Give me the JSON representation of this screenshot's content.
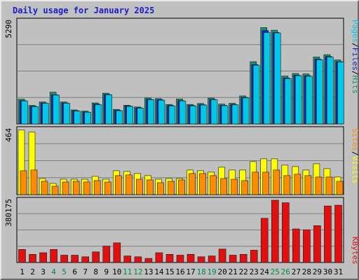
{
  "chart_data": {
    "type": "bar",
    "title": "Daily usage for January 2025",
    "days": [
      "1",
      "2",
      "3",
      "4",
      "5",
      "6",
      "7",
      "8",
      "9",
      "10",
      "11",
      "12",
      "13",
      "14",
      "15",
      "16",
      "17",
      "18",
      "19",
      "20",
      "21",
      "22",
      "23",
      "24",
      "25",
      "26",
      "27",
      "28",
      "29",
      "30",
      "31"
    ],
    "weekend_days": [
      "4",
      "5",
      "11",
      "12",
      "18",
      "19",
      "25",
      "26"
    ],
    "panels": [
      {
        "id": "hits-files-pages",
        "ymax_label": "5290",
        "ymax": 5290,
        "legend": [
          "Pages",
          "/",
          "Files",
          "/",
          "Hits"
        ],
        "series": [
          {
            "name": "Hits",
            "color": "#1a9070",
            "values": [
              1270,
              950,
              1130,
              1630,
              1130,
              720,
              660,
              1080,
              1580,
              750,
              960,
              870,
              1330,
              1300,
              1000,
              1280,
              1000,
              1050,
              1330,
              1020,
              1060,
              1440,
              3200,
              4950,
              4820,
              2460,
              2590,
              2570,
              3440,
              3560,
              3290
            ]
          },
          {
            "name": "Files",
            "color": "#1c1cc8",
            "values": [
              1200,
              910,
              1080,
              1500,
              1080,
              680,
              620,
              1020,
              1520,
              700,
              920,
              830,
              1260,
              1240,
              950,
              1200,
              950,
              990,
              1260,
              960,
              1000,
              1360,
              3050,
              4800,
              4700,
              2360,
              2500,
              2480,
              3330,
              3470,
              3200
            ]
          },
          {
            "name": "Pages",
            "color": "#00c8e8",
            "values": [
              1180,
              890,
              1060,
              1480,
              1060,
              660,
              600,
              990,
              1500,
              680,
              900,
              810,
              1240,
              1220,
              930,
              1180,
              930,
              970,
              1240,
              940,
              980,
              1340,
              3020,
              4700,
              4680,
              2330,
              2480,
              2450,
              3300,
              3440,
              3180
            ]
          }
        ]
      },
      {
        "id": "visits-sites",
        "ymax_label": "464",
        "ymax": 464,
        "legend": [
          "Sites",
          "/",
          "Visits"
        ],
        "series": [
          {
            "name": "Visits",
            "color": "#ffff00",
            "values": [
              460,
              445,
              115,
              80,
              110,
              110,
              110,
              130,
              110,
              170,
              165,
              150,
              135,
              110,
              115,
              115,
              175,
              170,
              160,
              195,
              175,
              175,
              235,
              255,
              255,
              210,
              200,
              175,
              220,
              185,
              125
            ]
          },
          {
            "name": "Sites",
            "color": "#ff8c00",
            "values": [
              170,
              175,
              95,
              60,
              90,
              95,
              90,
              100,
              90,
              135,
              140,
              110,
              105,
              85,
              95,
              105,
              150,
              150,
              135,
              115,
              110,
              100,
              160,
              160,
              175,
              135,
              145,
              135,
              125,
              125,
              95
            ]
          }
        ]
      },
      {
        "id": "kbytes",
        "ymax_label": "380175",
        "ymax": 380175,
        "legend": [
          "KBytes"
        ],
        "series": [
          {
            "name": "KBytes",
            "color": "#e01010",
            "values": [
              80000,
              50000,
              60000,
              80000,
              45000,
              45000,
              35000,
              65000,
              100000,
              120000,
              40000,
              35000,
              25000,
              60000,
              50000,
              45000,
              50000,
              35000,
              40000,
              82000,
              45000,
              50000,
              75000,
              270000,
              380000,
              365000,
              205000,
              200000,
              225000,
              345000,
              350000
            ]
          }
        ]
      }
    ]
  },
  "colors": {
    "background": "#c0c0c0",
    "gridline": "#7f7f7f",
    "weekday_label": "#000000",
    "weekend_label": "#00884a",
    "title": "#1c1cc8",
    "slash": "#000000",
    "pages": "#00c8e8",
    "files": "#1c1cc8",
    "hits": "#1a9070",
    "sites": "#ff8c00",
    "visits": "#ffff00",
    "kbytes": "#e01010"
  }
}
